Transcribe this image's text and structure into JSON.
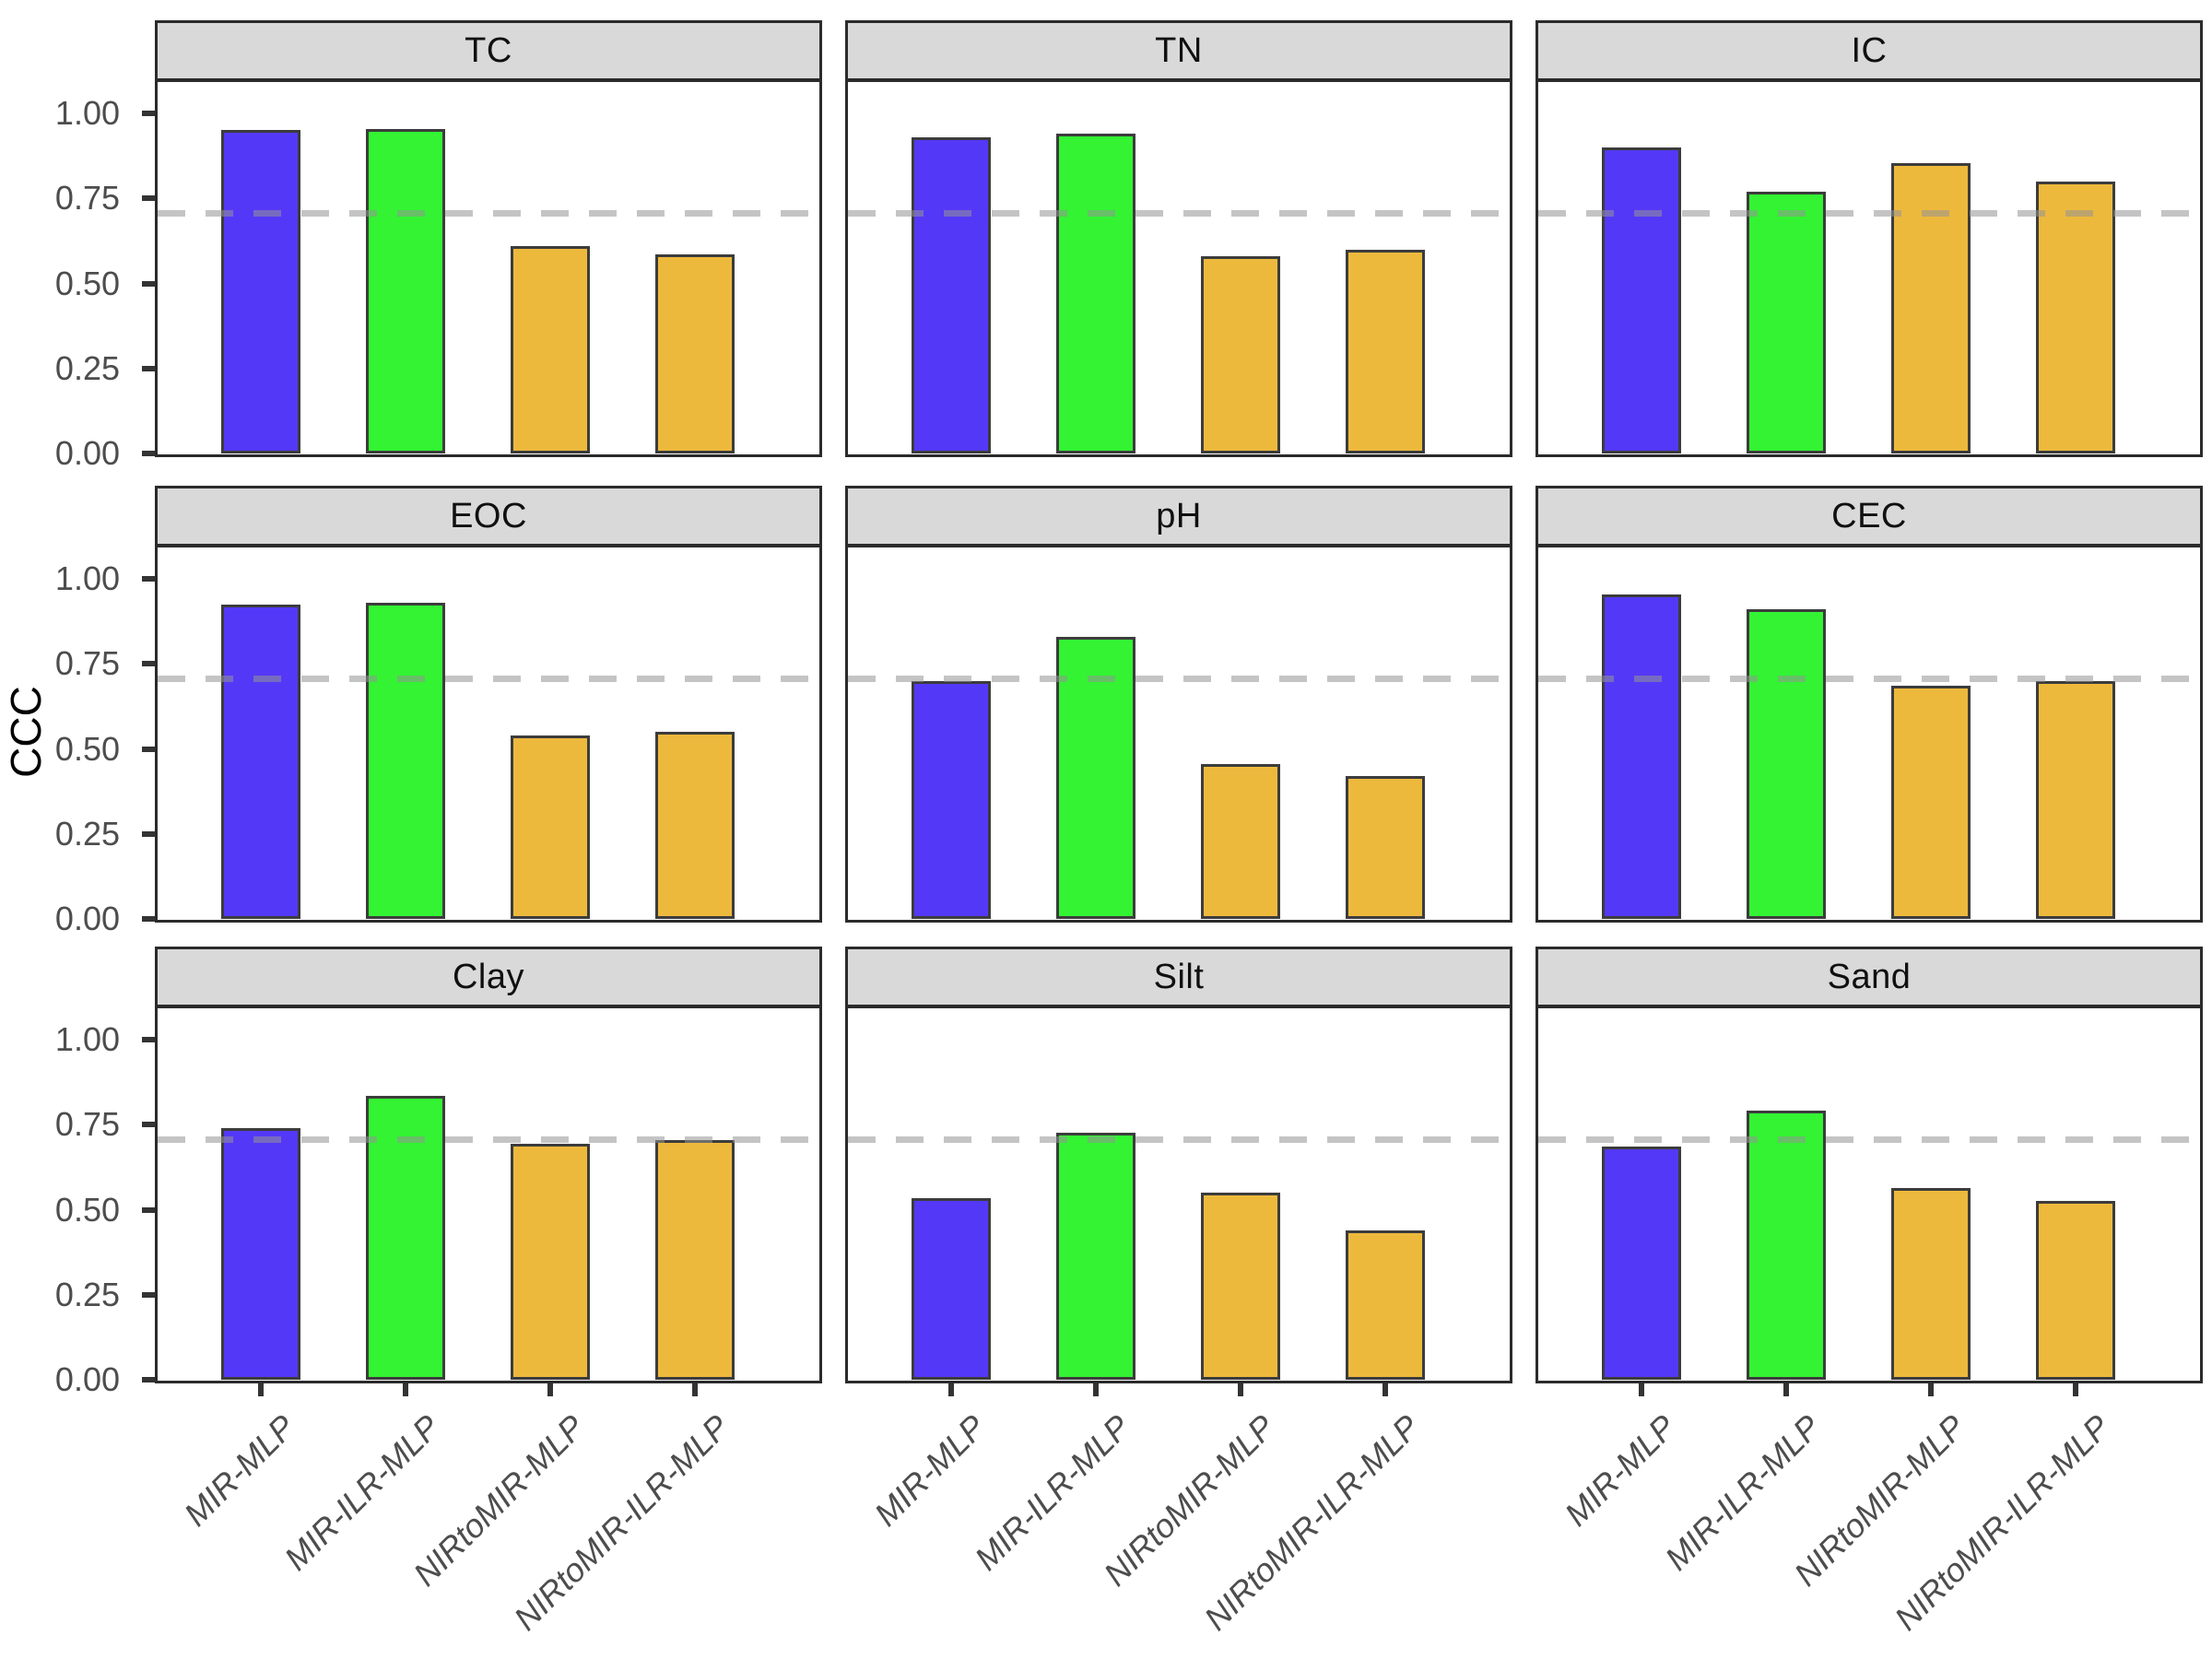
{
  "chart_data": {
    "type": "bar",
    "title": "",
    "xlabel": "",
    "ylabel": "CCC",
    "categories": [
      "MIR-MLP",
      "MIR-ILR-MLP",
      "NIRtoMIR-MLP",
      "NIRtoMIR-ILR-MLP"
    ],
    "facets": [
      {
        "label": "TC",
        "values": [
          0.95,
          0.955,
          0.61,
          0.585
        ]
      },
      {
        "label": "TN",
        "values": [
          0.93,
          0.94,
          0.58,
          0.6
        ]
      },
      {
        "label": "IC",
        "values": [
          0.9,
          0.77,
          0.855,
          0.8
        ]
      },
      {
        "label": "EOC",
        "values": [
          0.925,
          0.93,
          0.54,
          0.55
        ]
      },
      {
        "label": "pH",
        "values": [
          0.7,
          0.83,
          0.455,
          0.42
        ]
      },
      {
        "label": "CEC",
        "values": [
          0.955,
          0.91,
          0.685,
          0.7
        ]
      },
      {
        "label": "Clay",
        "values": [
          0.74,
          0.835,
          0.695,
          0.705
        ]
      },
      {
        "label": "Silt",
        "values": [
          0.535,
          0.725,
          0.55,
          0.44
        ]
      },
      {
        "label": "Sand",
        "values": [
          0.685,
          0.79,
          0.565,
          0.525
        ]
      }
    ],
    "bar_colors": [
      "#5339F7",
      "#33F333",
      "#EDB93D",
      "#EDB93D"
    ],
    "bar_border_color": "#3C3C3C",
    "y_ticks": [
      "0.00",
      "0.25",
      "0.50",
      "0.75",
      "1.00"
    ],
    "ylim": [
      0,
      1.095
    ],
    "reference_line": {
      "y": 0.7,
      "style": "dashed",
      "color": "#949494"
    },
    "strip_background": "#D9D9D9",
    "grid": false,
    "legend": "none"
  }
}
